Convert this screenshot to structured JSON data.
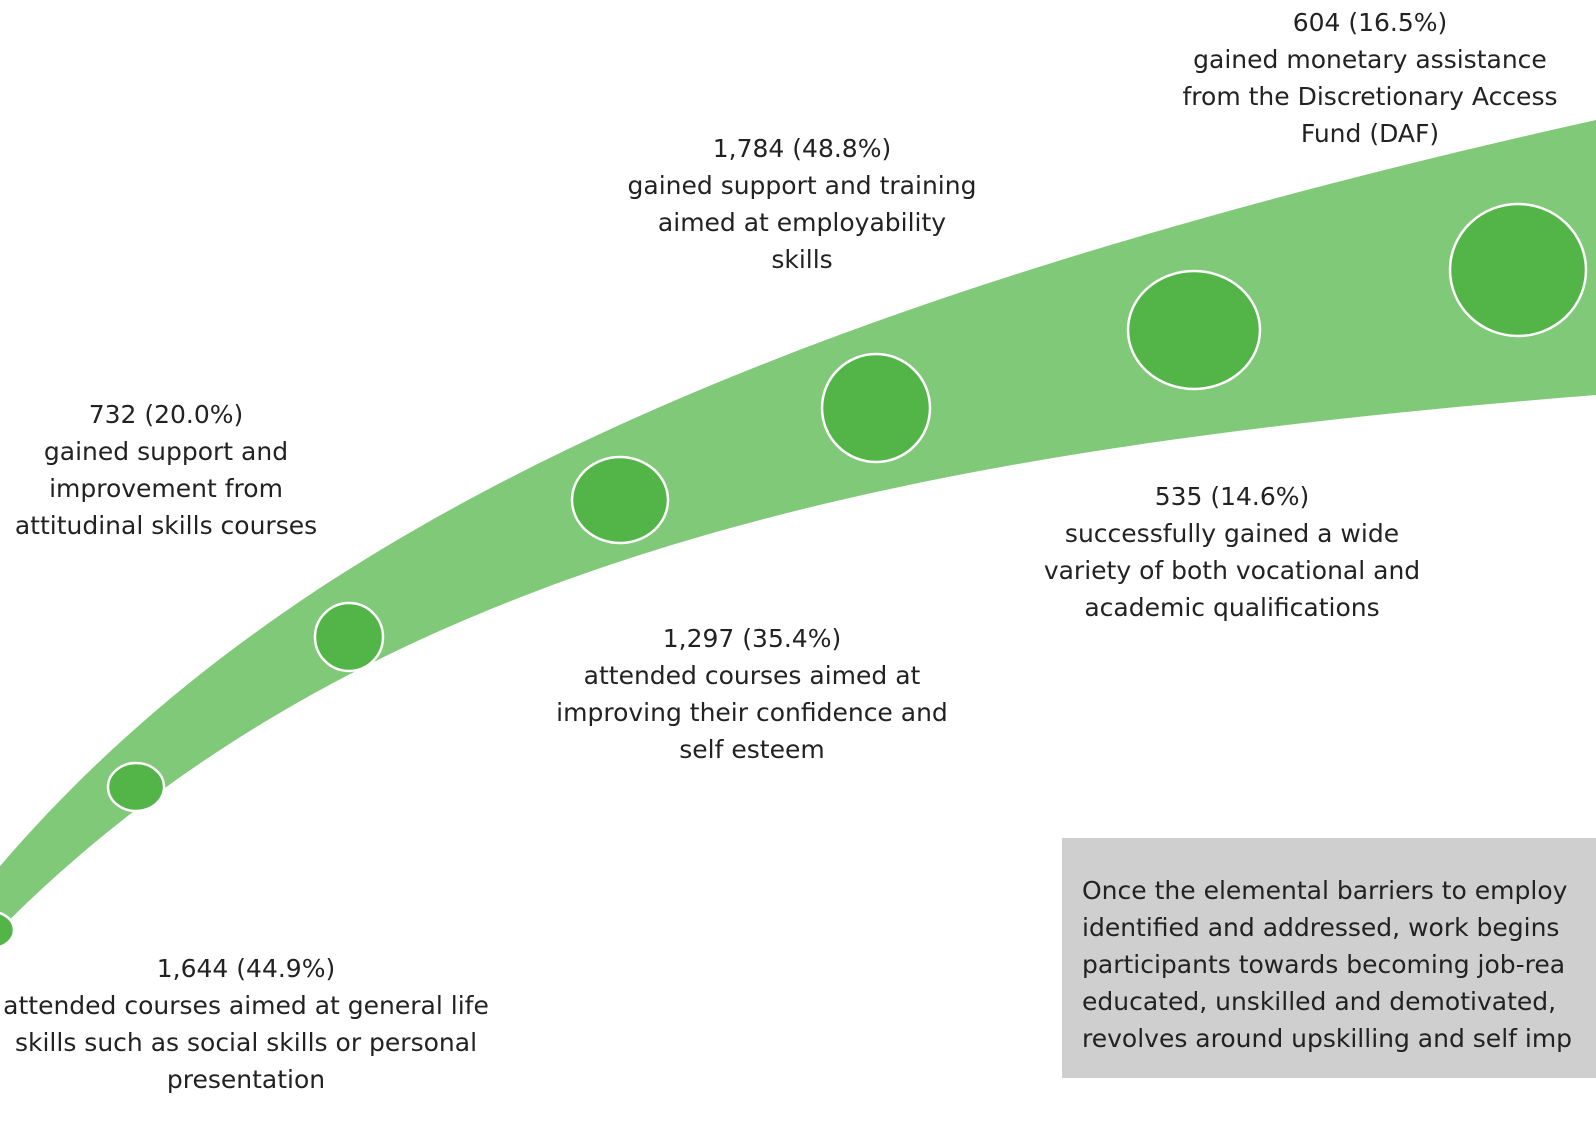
{
  "colors": {
    "band": "#80c978",
    "dot_fill": "#53b548",
    "dot_stroke": "#ffffff",
    "note_bg": "#d0cfd0",
    "text": "#222222"
  },
  "milestones": [
    {
      "stat": "1,644 (44.9%)",
      "lines": [
        "attended courses aimed at general life",
        "skills such as social skills or personal",
        "presentation"
      ]
    },
    {
      "stat": "732 (20.0%)",
      "lines": [
        "gained support and",
        "improvement from",
        "attitudinal skills courses"
      ]
    },
    {
      "stat": "1,297 (35.4%)",
      "lines": [
        "attended courses aimed at",
        "improving their confidence and",
        "self esteem"
      ]
    },
    {
      "stat": "1,784 (48.8%)",
      "lines": [
        "gained support and training",
        "aimed at employability",
        "skills"
      ]
    },
    {
      "stat": "535 (14.6%)",
      "lines": [
        "successfully gained a wide",
        "variety of both vocational and",
        "academic qualifications"
      ]
    },
    {
      "stat": "604 (16.5%)",
      "lines": [
        "gained monetary assistance",
        "from the Discretionary Access",
        "Fund (DAF)"
      ]
    }
  ],
  "note": {
    "lines": [
      "Once the elemental barriers to employ",
      "identified and addressed, work begins",
      "participants towards becoming job-rea",
      "educated, unskilled and demotivated,",
      "revolves around upskilling and self imp"
    ]
  }
}
